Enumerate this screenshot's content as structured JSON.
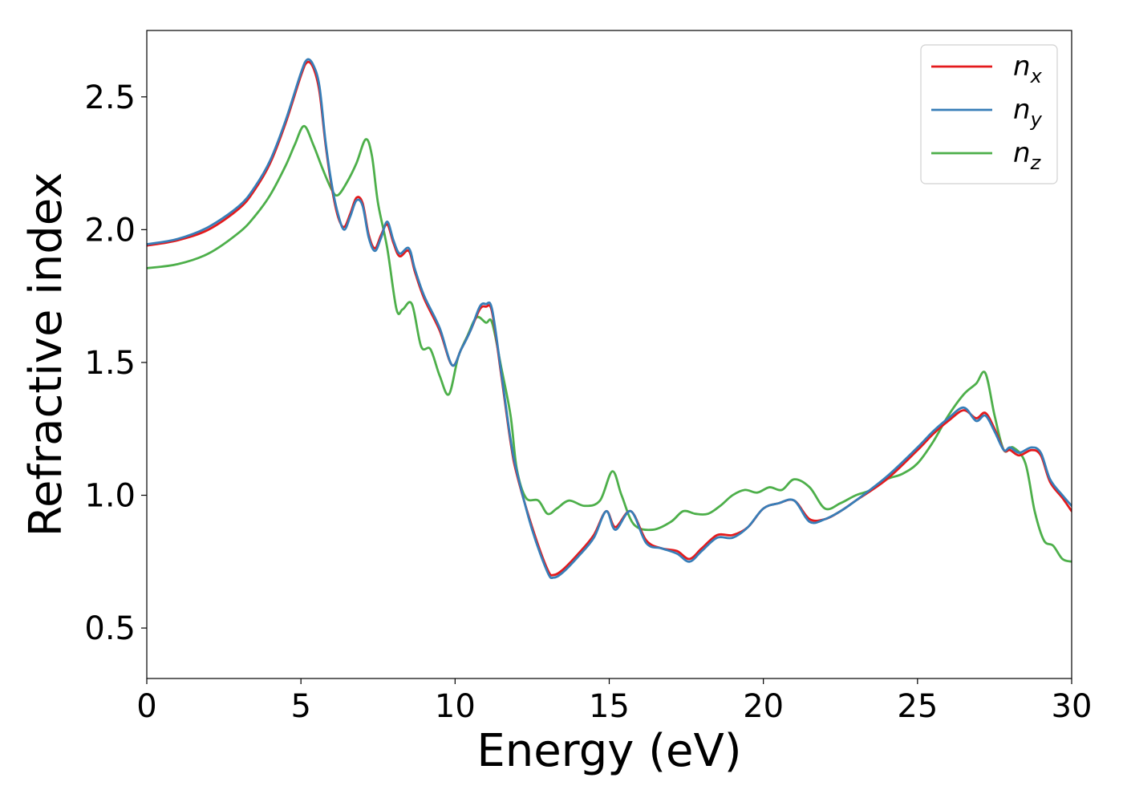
{
  "chart_data": {
    "type": "line",
    "xlabel": "Energy (eV)",
    "ylabel": "Refractive index",
    "xlim": [
      0,
      30
    ],
    "ylim": [
      0.31,
      2.75
    ],
    "xticks": [
      0,
      5,
      10,
      15,
      20,
      25,
      30
    ],
    "yticks": [
      0.5,
      1.0,
      1.5,
      2.0,
      2.5
    ],
    "grid": false,
    "legend_position": "top-right",
    "series": [
      {
        "name": "n_x",
        "label_base": "n",
        "label_sub": "x",
        "color": "#e41a1c",
        "x": [
          0,
          1,
          2,
          3,
          3.5,
          4,
          4.5,
          5,
          5.2,
          5.4,
          5.6,
          5.8,
          6.0,
          6.2,
          6.4,
          6.6,
          6.8,
          7.0,
          7.2,
          7.4,
          7.6,
          7.8,
          8.0,
          8.2,
          8.5,
          8.7,
          9.0,
          9.5,
          9.9,
          10.2,
          10.5,
          10.8,
          11.0,
          11.2,
          11.5,
          11.8,
          12.0,
          12.5,
          13.0,
          13.2,
          13.5,
          14.0,
          14.5,
          14.9,
          15.2,
          15.7,
          16.2,
          16.7,
          17.2,
          17.6,
          18.0,
          18.5,
          19.0,
          19.5,
          20.0,
          20.5,
          21.0,
          21.5,
          22.0,
          22.5,
          23.0,
          24.0,
          25.0,
          25.5,
          26.0,
          26.5,
          26.9,
          27.2,
          27.5,
          27.8,
          28.0,
          28.3,
          28.7,
          29.0,
          29.3,
          29.7,
          30.0
        ],
        "y": [
          1.94,
          1.96,
          2.0,
          2.08,
          2.15,
          2.25,
          2.4,
          2.58,
          2.63,
          2.61,
          2.52,
          2.32,
          2.16,
          2.05,
          2.01,
          2.06,
          2.12,
          2.1,
          1.98,
          1.93,
          1.98,
          2.02,
          1.95,
          1.9,
          1.92,
          1.84,
          1.74,
          1.62,
          1.49,
          1.55,
          1.62,
          1.7,
          1.71,
          1.69,
          1.45,
          1.2,
          1.08,
          0.88,
          0.72,
          0.7,
          0.72,
          0.78,
          0.85,
          0.94,
          0.88,
          0.94,
          0.83,
          0.8,
          0.79,
          0.76,
          0.8,
          0.85,
          0.85,
          0.88,
          0.95,
          0.97,
          0.98,
          0.91,
          0.91,
          0.94,
          0.98,
          1.06,
          1.17,
          1.23,
          1.28,
          1.32,
          1.29,
          1.31,
          1.25,
          1.17,
          1.17,
          1.15,
          1.17,
          1.15,
          1.05,
          0.99,
          0.94
        ]
      },
      {
        "name": "n_y",
        "label_base": "n",
        "label_sub": "y",
        "color": "#377eb8",
        "x": [
          0,
          1,
          2,
          3,
          3.5,
          4,
          4.5,
          5,
          5.2,
          5.4,
          5.6,
          5.8,
          6.0,
          6.2,
          6.4,
          6.6,
          6.8,
          7.0,
          7.2,
          7.4,
          7.6,
          7.8,
          8.0,
          8.2,
          8.5,
          8.7,
          9.0,
          9.5,
          9.9,
          10.2,
          10.5,
          10.8,
          11.0,
          11.2,
          11.5,
          11.8,
          12.0,
          12.5,
          13.0,
          13.2,
          13.5,
          14.0,
          14.5,
          14.9,
          15.2,
          15.7,
          16.2,
          16.7,
          17.2,
          17.6,
          18.0,
          18.5,
          19.0,
          19.5,
          20.0,
          20.5,
          21.0,
          21.5,
          22.0,
          22.5,
          23.0,
          24.0,
          25.0,
          25.5,
          26.0,
          26.5,
          26.9,
          27.2,
          27.5,
          27.8,
          28.0,
          28.3,
          28.7,
          29.0,
          29.3,
          29.7,
          30.0
        ],
        "y": [
          1.945,
          1.965,
          2.01,
          2.09,
          2.16,
          2.26,
          2.41,
          2.59,
          2.64,
          2.62,
          2.54,
          2.33,
          2.17,
          2.06,
          2.0,
          2.05,
          2.11,
          2.09,
          1.97,
          1.92,
          1.97,
          2.03,
          1.96,
          1.91,
          1.93,
          1.85,
          1.75,
          1.63,
          1.49,
          1.55,
          1.62,
          1.71,
          1.72,
          1.7,
          1.46,
          1.21,
          1.09,
          0.87,
          0.71,
          0.69,
          0.71,
          0.77,
          0.84,
          0.94,
          0.87,
          0.94,
          0.82,
          0.8,
          0.78,
          0.75,
          0.79,
          0.84,
          0.84,
          0.88,
          0.95,
          0.97,
          0.98,
          0.9,
          0.91,
          0.94,
          0.98,
          1.07,
          1.18,
          1.24,
          1.29,
          1.33,
          1.28,
          1.3,
          1.24,
          1.17,
          1.18,
          1.16,
          1.18,
          1.16,
          1.06,
          1.0,
          0.96
        ]
      },
      {
        "name": "n_z",
        "label_base": "n",
        "label_sub": "z",
        "color": "#4daf4a",
        "x": [
          0,
          1,
          2,
          3,
          3.5,
          4,
          4.5,
          4.8,
          5.1,
          5.4,
          5.7,
          6.0,
          6.2,
          6.5,
          6.8,
          7.1,
          7.3,
          7.5,
          7.8,
          8.1,
          8.3,
          8.6,
          8.9,
          9.2,
          9.5,
          9.8,
          10.1,
          10.4,
          10.7,
          11.0,
          11.2,
          11.5,
          11.8,
          12.0,
          12.3,
          12.7,
          13.0,
          13.3,
          13.7,
          14.2,
          14.7,
          15.1,
          15.4,
          15.8,
          16.4,
          17.0,
          17.4,
          17.8,
          18.2,
          18.6,
          19.0,
          19.4,
          19.8,
          20.2,
          20.6,
          21.0,
          21.5,
          22.0,
          22.5,
          23.0,
          23.5,
          24.0,
          24.5,
          25.0,
          25.5,
          26.0,
          26.5,
          26.9,
          27.2,
          27.5,
          27.8,
          28.1,
          28.5,
          28.8,
          29.1,
          29.4,
          29.7,
          30.0
        ],
        "y": [
          1.855,
          1.87,
          1.91,
          1.99,
          2.05,
          2.13,
          2.24,
          2.32,
          2.39,
          2.32,
          2.23,
          2.15,
          2.13,
          2.18,
          2.25,
          2.34,
          2.28,
          2.1,
          1.93,
          1.7,
          1.7,
          1.72,
          1.56,
          1.55,
          1.45,
          1.38,
          1.52,
          1.6,
          1.67,
          1.65,
          1.65,
          1.48,
          1.3,
          1.1,
          0.99,
          0.98,
          0.93,
          0.95,
          0.98,
          0.96,
          0.98,
          1.09,
          1.0,
          0.89,
          0.87,
          0.9,
          0.94,
          0.93,
          0.93,
          0.96,
          1.0,
          1.02,
          1.01,
          1.03,
          1.02,
          1.06,
          1.03,
          0.95,
          0.97,
          1.0,
          1.02,
          1.06,
          1.08,
          1.12,
          1.2,
          1.3,
          1.38,
          1.42,
          1.46,
          1.3,
          1.17,
          1.18,
          1.12,
          0.94,
          0.83,
          0.81,
          0.76,
          0.75
        ]
      }
    ]
  }
}
